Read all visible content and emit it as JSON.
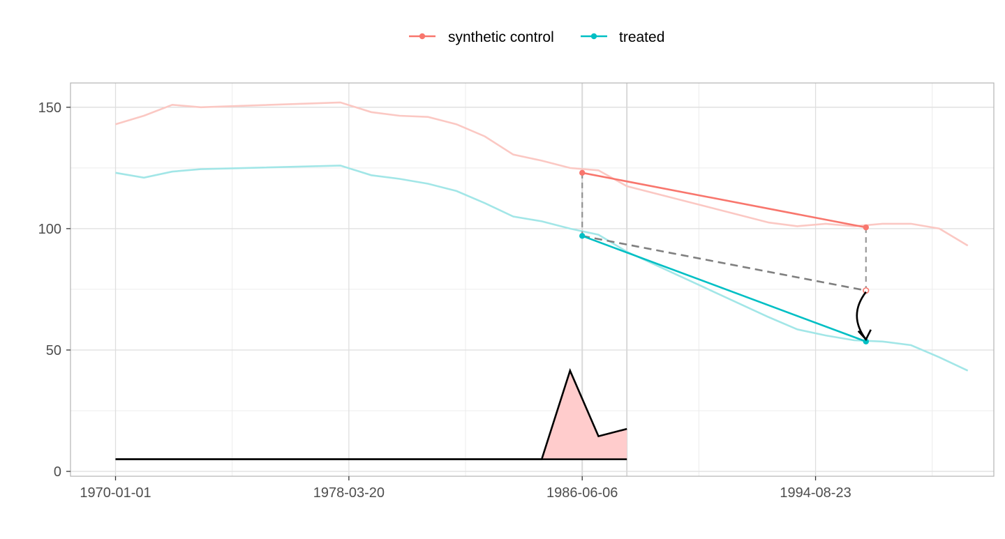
{
  "chart_data": {
    "type": "line",
    "title": "",
    "xlabel": "",
    "ylabel": "",
    "x_axis_type": "date",
    "xlim": [
      "1968-06-01",
      "2000-12-01"
    ],
    "ylim": [
      -2,
      160
    ],
    "x_ticks": [
      "1970-01-01",
      "1978-03-20",
      "1986-06-06",
      "1994-08-23"
    ],
    "y_ticks": [
      0,
      50,
      100,
      150
    ],
    "grid": true,
    "legend": {
      "position": "top",
      "entries": [
        "synthetic control",
        "treated"
      ]
    },
    "colors": {
      "synthetic": "#F8766D",
      "treated": "#00BFC4",
      "synthetic_faded": "#FBC8C3",
      "treated_faded": "#A2E6E7",
      "counterfactual": "#7F7F7F",
      "area_fill": "#FFCCCC",
      "area_line": "#000000"
    },
    "reference_dates": [
      "1986-06-06",
      "1988-01-01"
    ],
    "series": [
      {
        "name": "synthetic control",
        "role": "faded-background",
        "x": [
          "1970-01-01",
          "1971-01-01",
          "1972-01-01",
          "1973-01-01",
          "1977-12-01",
          "1979-01-01",
          "1980-01-01",
          "1981-01-01",
          "1982-01-01",
          "1983-01-01",
          "1984-01-01",
          "1985-01-01",
          "1986-01-01",
          "1987-01-01",
          "1988-01-01",
          "1993-01-01",
          "1994-01-01",
          "1995-01-01",
          "1996-01-01",
          "1997-01-01",
          "1998-01-01",
          "1999-01-01",
          "2000-01-01"
        ],
        "values": [
          143,
          146.5,
          151,
          150,
          152,
          148,
          146.5,
          146,
          143,
          138,
          130.5,
          128,
          125,
          124,
          117.5,
          102.5,
          101,
          102,
          101,
          102,
          102,
          100,
          93
        ]
      },
      {
        "name": "treated",
        "role": "faded-background",
        "x": [
          "1970-01-01",
          "1971-01-01",
          "1972-01-01",
          "1973-01-01",
          "1977-12-01",
          "1979-01-01",
          "1980-01-01",
          "1981-01-01",
          "1982-01-01",
          "1983-01-01",
          "1984-01-01",
          "1985-01-01",
          "1986-01-01",
          "1987-01-01",
          "1988-01-01",
          "1993-01-01",
          "1994-01-01",
          "1995-01-01",
          "1996-01-01",
          "1997-01-01",
          "1998-01-01",
          "1999-01-01",
          "2000-01-01"
        ],
        "values": [
          123,
          121,
          123.5,
          124.5,
          126,
          122,
          120.5,
          118.5,
          115.5,
          110.5,
          105,
          103,
          100,
          97.5,
          90.5,
          63.5,
          58.5,
          56,
          54,
          53.5,
          52,
          47,
          41.5
        ]
      },
      {
        "name": "synthetic control",
        "role": "highlight",
        "x": [
          "1986-06-06",
          "1996-06-01"
        ],
        "values": [
          123,
          100.5
        ]
      },
      {
        "name": "treated",
        "role": "highlight",
        "x": [
          "1986-06-06",
          "1996-06-01"
        ],
        "values": [
          97,
          53.5
        ]
      },
      {
        "name": "counterfactual",
        "role": "dashed-projection",
        "x": [
          "1986-06-06",
          "1996-06-01"
        ],
        "values": [
          97,
          74.5
        ]
      },
      {
        "name": "weights",
        "role": "area",
        "x": [
          "1970-01-01",
          "1985-01-01",
          "1986-01-01",
          "1987-01-01",
          "1988-01-01"
        ],
        "values": [
          5,
          5,
          41.5,
          14.5,
          17.5
        ],
        "baseline": 5
      }
    ]
  }
}
